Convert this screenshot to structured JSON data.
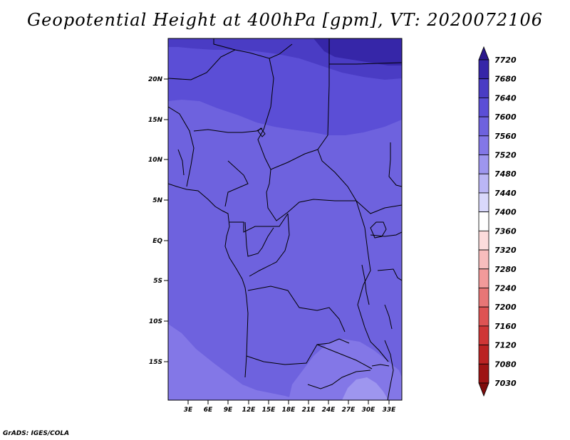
{
  "title": "Geopotential Height at 400hPa [gpm], VT: 2020072106",
  "footer": "GrADS: IGES/COLA",
  "map": {
    "lat_ticks": [
      "20N",
      "15N",
      "10N",
      "5N",
      "EQ",
      "5S",
      "10S",
      "15S"
    ],
    "lon_ticks": [
      "3E",
      "6E",
      "9E",
      "12E",
      "15E",
      "18E",
      "21E",
      "24E",
      "27E",
      "30E",
      "33E"
    ],
    "extent": {
      "lon_min": 0.5,
      "lon_max": 34.0,
      "lat_min": -19.5,
      "lat_max": 24.5
    },
    "fill_levels": {
      "base": "7560-7600",
      "north_band": "7600-7640",
      "northeast_band": "7640-7680",
      "top_right": "7680-7720",
      "southwest": "7520-7560",
      "south_interior": "7520-7560",
      "southeast_pocket": "7480-7520"
    }
  },
  "colorbar": {
    "levels": [
      "7720",
      "7680",
      "7640",
      "7600",
      "7560",
      "7520",
      "7480",
      "7440",
      "7400",
      "7360",
      "7320",
      "7280",
      "7240",
      "7200",
      "7160",
      "7120",
      "7080",
      "7030"
    ],
    "colors": [
      "#2a178c",
      "#3626a8",
      "#4a3cc4",
      "#5b4ed6",
      "#6e62de",
      "#8377e7",
      "#9e96ef",
      "#bbb6f5",
      "#d9d8fb",
      "#ffffff",
      "#fcdcdc",
      "#f8bdbd",
      "#f29a9a",
      "#e87676",
      "#de5353",
      "#cf3636",
      "#bb2323",
      "#9e1414",
      "#7e0b0b"
    ]
  }
}
